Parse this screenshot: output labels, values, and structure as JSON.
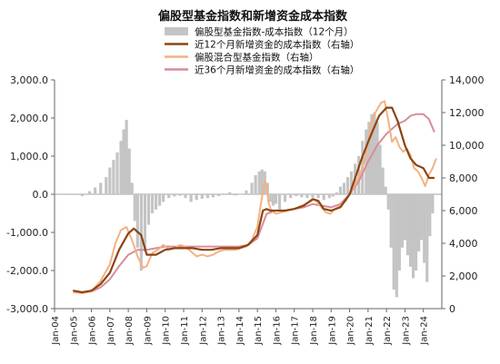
{
  "chart_data": {
    "type": "bar+line",
    "title": "偏股型基金指数和新增资金成本指数",
    "legend": [
      {
        "name": "偏股型基金指数-成本指数（12个月）",
        "kind": "bar",
        "color": "#c4c4c4"
      },
      {
        "name": "近12个月新增资金的成本指数（右轴）",
        "kind": "line",
        "color": "#8b4513"
      },
      {
        "name": "偏股混合型基金指数（右轴）",
        "kind": "line",
        "color": "#f4b183"
      },
      {
        "name": "近36个月新增资金的成本指数（右轴）",
        "kind": "line",
        "color": "#d98c9a"
      }
    ],
    "y_left": {
      "ticks": [
        "3,000.0",
        "2,000.0",
        "1,000.0",
        "0.0",
        "-1,000.0",
        "-2,000.0",
        "-3,000.0"
      ],
      "min": -3000,
      "max": 3000
    },
    "y_right": {
      "ticks": [
        "14,000",
        "12,000",
        "10,000",
        "8,000",
        "6,000",
        "4,000",
        "2,000",
        "0"
      ],
      "min": 0,
      "max": 14000
    },
    "x_ticks": [
      "Jan-04",
      "Jan-05",
      "Jan-06",
      "Jan-07",
      "Jan-08",
      "Jan-09",
      "Jan-10",
      "Jan-11",
      "Jan-12",
      "Jan-13",
      "Jan-14",
      "Jan-15",
      "Jan-16",
      "Jan-17",
      "Jan-18",
      "Jan-19",
      "Jan-20",
      "Jan-21",
      "Jan-22",
      "Jan-23",
      "Jan-24"
    ],
    "x_range": [
      2004.0,
      2025.0
    ],
    "series": [
      {
        "name": "偏股型基金指数-成本指数（12个月）",
        "kind": "bar",
        "x": [
          2005.1,
          2005.5,
          2005.9,
          2006.2,
          2006.5,
          2006.8,
          2007.0,
          2007.2,
          2007.4,
          2007.6,
          2007.75,
          2007.9,
          2008.05,
          2008.2,
          2008.35,
          2008.5,
          2008.7,
          2008.9,
          2009.1,
          2009.3,
          2009.5,
          2009.7,
          2009.9,
          2010.2,
          2010.5,
          2010.8,
          2011.1,
          2011.4,
          2011.7,
          2012.0,
          2012.3,
          2012.6,
          2012.9,
          2013.2,
          2013.5,
          2013.8,
          2014.1,
          2014.4,
          2014.7,
          2014.9,
          2015.1,
          2015.25,
          2015.4,
          2015.55,
          2015.7,
          2015.85,
          2016.0,
          2016.2,
          2016.5,
          2016.8,
          2017.1,
          2017.4,
          2017.7,
          2018.0,
          2018.3,
          2018.6,
          2018.9,
          2019.1,
          2019.3,
          2019.5,
          2019.7,
          2019.9,
          2020.1,
          2020.3,
          2020.5,
          2020.7,
          2020.9,
          2021.05,
          2021.2,
          2021.35,
          2021.5,
          2021.65,
          2021.8,
          2021.95,
          2022.1,
          2022.25,
          2022.4,
          2022.55,
          2022.7,
          2022.85,
          2023.0,
          2023.15,
          2023.3,
          2023.45,
          2023.6,
          2023.75,
          2023.9,
          2024.05,
          2024.2,
          2024.35,
          2024.5
        ],
        "values": [
          -20,
          -50,
          80,
          180,
          300,
          450,
          700,
          900,
          1100,
          1400,
          1700,
          1950,
          1200,
          300,
          -700,
          -1400,
          -2000,
          -1500,
          -800,
          -500,
          -400,
          -300,
          -200,
          -100,
          -60,
          -40,
          -100,
          -200,
          -150,
          -120,
          -100,
          -80,
          -50,
          20,
          50,
          -30,
          -10,
          100,
          300,
          500,
          600,
          650,
          600,
          300,
          -200,
          -300,
          -250,
          -400,
          -200,
          -100,
          -50,
          -80,
          -100,
          -90,
          -100,
          -150,
          -100,
          -60,
          50,
          200,
          300,
          450,
          600,
          800,
          1000,
          1400,
          1700,
          1900,
          2100,
          2150,
          1900,
          1300,
          700,
          200,
          -400,
          -1400,
          -2500,
          -2700,
          -2000,
          -1400,
          -1200,
          -1600,
          -1900,
          -2200,
          -2000,
          -1500,
          -1200,
          -1800,
          -2300,
          -1100,
          -500
        ]
      },
      {
        "name": "近12个月新增资金的成本指数（右轴）",
        "kind": "line",
        "x": [
          2005.0,
          2005.5,
          2006.0,
          2006.5,
          2007.0,
          2007.5,
          2008.0,
          2008.3,
          2008.7,
          2009.0,
          2009.5,
          2010.0,
          2010.5,
          2011.0,
          2011.5,
          2012.0,
          2012.5,
          2013.0,
          2013.5,
          2014.0,
          2014.5,
          2015.0,
          2015.3,
          2015.5,
          2015.7,
          2016.0,
          2016.5,
          2017.0,
          2017.5,
          2018.0,
          2018.3,
          2018.6,
          2019.0,
          2019.5,
          2020.0,
          2020.3,
          2020.6,
          2021.0,
          2021.3,
          2021.6,
          2022.0,
          2022.3,
          2022.6,
          2023.0,
          2023.3,
          2023.6,
          2024.0,
          2024.3,
          2024.6
        ],
        "values": [
          1100,
          1000,
          1100,
          1500,
          2200,
          3600,
          4600,
          4900,
          4500,
          3300,
          3300,
          3600,
          3700,
          3700,
          3700,
          3600,
          3600,
          3700,
          3700,
          3700,
          3900,
          4500,
          6000,
          6100,
          6000,
          6000,
          6000,
          6100,
          6300,
          6700,
          6600,
          6100,
          6000,
          6200,
          7000,
          8000,
          9000,
          10200,
          11000,
          11800,
          12300,
          12300,
          11500,
          10000,
          9200,
          8800,
          8600,
          8000,
          8000
        ]
      },
      {
        "name": "偏股混合型基金指数（右轴）",
        "kind": "line",
        "x": [
          2005.0,
          2005.5,
          2006.0,
          2006.5,
          2007.0,
          2007.3,
          2007.6,
          2007.9,
          2008.2,
          2008.5,
          2008.8,
          2009.0,
          2009.3,
          2009.6,
          2009.9,
          2010.2,
          2010.5,
          2010.8,
          2011.1,
          2011.4,
          2011.7,
          2012.0,
          2012.3,
          2012.6,
          2012.9,
          2013.2,
          2013.5,
          2013.8,
          2014.1,
          2014.4,
          2014.7,
          2015.0,
          2015.2,
          2015.4,
          2015.5,
          2015.6,
          2015.75,
          2016.0,
          2016.3,
          2016.6,
          2017.0,
          2017.4,
          2017.8,
          2018.1,
          2018.4,
          2018.7,
          2018.95,
          2019.2,
          2019.5,
          2019.8,
          2020.1,
          2020.4,
          2020.7,
          2021.0,
          2021.15,
          2021.3,
          2021.5,
          2021.7,
          2021.9,
          2022.1,
          2022.3,
          2022.5,
          2022.7,
          2022.9,
          2023.1,
          2023.3,
          2023.5,
          2023.7,
          2023.9,
          2024.1,
          2024.3,
          2024.5,
          2024.7
        ],
        "values": [
          1000,
          950,
          1050,
          1700,
          2700,
          4000,
          4800,
          5000,
          4200,
          3200,
          2500,
          2600,
          3400,
          3600,
          3900,
          3600,
          3700,
          3900,
          3800,
          3500,
          3200,
          3300,
          3200,
          3300,
          3500,
          3600,
          3600,
          3600,
          3700,
          3800,
          4200,
          5000,
          6500,
          7800,
          7500,
          6500,
          6000,
          5800,
          5900,
          6000,
          6100,
          6300,
          6500,
          6700,
          6300,
          5900,
          5800,
          6100,
          6300,
          6600,
          7200,
          7800,
          8600,
          10000,
          11200,
          11800,
          12200,
          12600,
          12700,
          11500,
          10200,
          10500,
          9900,
          9600,
          9800,
          9400,
          8600,
          8400,
          8000,
          7500,
          8200,
          8600,
          9200
        ]
      },
      {
        "name": "近36个月新增资金的成本指数（右轴）",
        "kind": "line",
        "x": [
          2005.0,
          2005.5,
          2006.0,
          2006.5,
          2007.0,
          2007.5,
          2008.0,
          2008.5,
          2009.0,
          2009.5,
          2010.0,
          2010.5,
          2011.0,
          2011.5,
          2012.0,
          2012.5,
          2013.0,
          2013.5,
          2014.0,
          2014.5,
          2015.0,
          2015.5,
          2016.0,
          2016.5,
          2017.0,
          2017.5,
          2018.0,
          2018.5,
          2019.0,
          2019.5,
          2020.0,
          2020.5,
          2021.0,
          2021.5,
          2022.0,
          2022.3,
          2022.6,
          2023.0,
          2023.3,
          2023.6,
          2024.0,
          2024.3,
          2024.6
        ],
        "values": [
          1100,
          1000,
          1050,
          1300,
          1800,
          2600,
          3300,
          3600,
          3600,
          3700,
          3800,
          3800,
          3800,
          3800,
          3800,
          3800,
          3800,
          3800,
          3800,
          3900,
          4300,
          5800,
          6000,
          6000,
          6100,
          6200,
          6400,
          6300,
          6200,
          6400,
          7000,
          7800,
          9000,
          10000,
          10700,
          11000,
          11300,
          11500,
          11800,
          11900,
          11900,
          11600,
          10800
        ]
      }
    ]
  }
}
